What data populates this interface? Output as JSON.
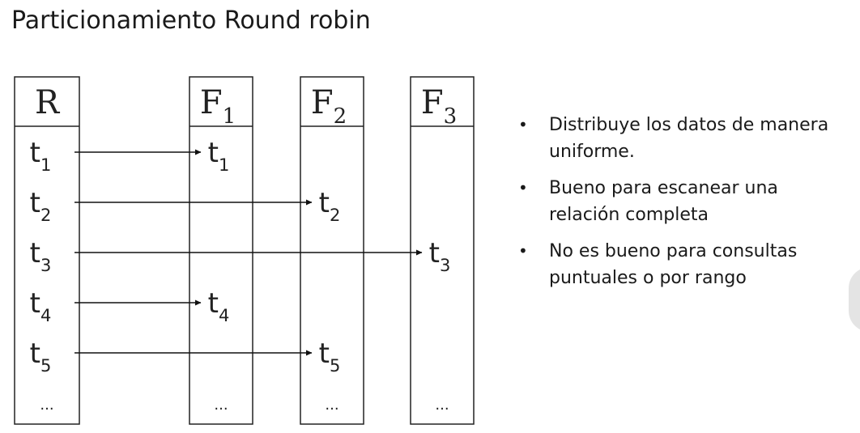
{
  "title": "Particionamiento Round robin",
  "relation": {
    "name": "R",
    "tuples": [
      {
        "base": "t",
        "sub": "1"
      },
      {
        "base": "t",
        "sub": "2"
      },
      {
        "base": "t",
        "sub": "3"
      },
      {
        "base": "t",
        "sub": "4"
      },
      {
        "base": "t",
        "sub": "5"
      }
    ],
    "ellipsis": "..."
  },
  "fragments": [
    {
      "base": "F",
      "sub": "1",
      "tuples": [
        {
          "base": "t",
          "sub": "1",
          "row": 0
        },
        {
          "base": "t",
          "sub": "4",
          "row": 3
        }
      ],
      "ellipsis": "..."
    },
    {
      "base": "F",
      "sub": "2",
      "tuples": [
        {
          "base": "t",
          "sub": "2",
          "row": 1
        },
        {
          "base": "t",
          "sub": "5",
          "row": 4
        }
      ],
      "ellipsis": "..."
    },
    {
      "base": "F",
      "sub": "3",
      "tuples": [
        {
          "base": "t",
          "sub": "3",
          "row": 2
        }
      ],
      "ellipsis": "..."
    }
  ],
  "bullets": [
    "Distribuye los datos de manera uniforme.",
    "Bueno para escanear una relación completa",
    "No es bueno para consultas puntuales o por rango"
  ],
  "bullet_symbol": "•"
}
